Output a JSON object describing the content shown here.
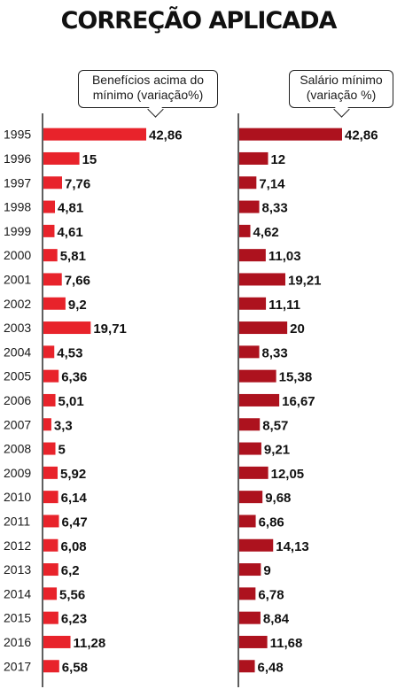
{
  "title": "CORREÇÃO APLICADA",
  "colors": {
    "left_bar": "#e8232b",
    "right_bar": "#ad121e",
    "divider": "#2a2a2a"
  },
  "chart_data": [
    {
      "type": "bar",
      "orientation": "horizontal",
      "title": "Benefícios acima do mínimo (variação%)",
      "categories": [
        "1995",
        "1996",
        "1997",
        "1998",
        "1999",
        "2000",
        "2001",
        "2002",
        "2003",
        "2004",
        "2005",
        "2006",
        "2007",
        "2008",
        "2009",
        "2010",
        "2011",
        "2012",
        "2013",
        "2014",
        "2015",
        "2016",
        "2017"
      ],
      "values": [
        42.86,
        15,
        7.76,
        4.81,
        4.61,
        5.81,
        7.66,
        9.2,
        19.71,
        4.53,
        6.36,
        5.01,
        3.3,
        5,
        5.92,
        6.14,
        6.47,
        6.08,
        6.2,
        5.56,
        6.23,
        11.28,
        6.58
      ],
      "value_labels": [
        "42,86",
        "15",
        "7,76",
        "4,81",
        "4,61",
        "5,81",
        "7,66",
        "9,2",
        "19,71",
        "4,53",
        "6,36",
        "5,01",
        "3,3",
        "5",
        "5,92",
        "6,14",
        "6,47",
        "6,08",
        "6,2",
        "5,56",
        "6,23",
        "11,28",
        "6,58"
      ]
    },
    {
      "type": "bar",
      "orientation": "horizontal",
      "title": "Salário mínimo (variação %)",
      "categories": [
        "1995",
        "1996",
        "1997",
        "1998",
        "1999",
        "2000",
        "2001",
        "2002",
        "2003",
        "2004",
        "2005",
        "2006",
        "2007",
        "2008",
        "2009",
        "2010",
        "2011",
        "2012",
        "2013",
        "2014",
        "2015",
        "2016",
        "2017"
      ],
      "values": [
        42.86,
        12,
        7.14,
        8.33,
        4.62,
        11.03,
        19.21,
        11.11,
        20,
        8.33,
        15.38,
        16.67,
        8.57,
        9.21,
        12.05,
        9.68,
        6.86,
        14.13,
        9,
        6.78,
        8.84,
        11.68,
        6.48
      ],
      "value_labels": [
        "42,86",
        "12",
        "7,14",
        "8,33",
        "4,62",
        "11,03",
        "19,21",
        "11,11",
        "20",
        "8,33",
        "15,38",
        "16,67",
        "8,57",
        "9,21",
        "12,05",
        "9,68",
        "6,86",
        "14,13",
        "9",
        "6,78",
        "8,84",
        "11,68",
        "6,48"
      ]
    }
  ]
}
